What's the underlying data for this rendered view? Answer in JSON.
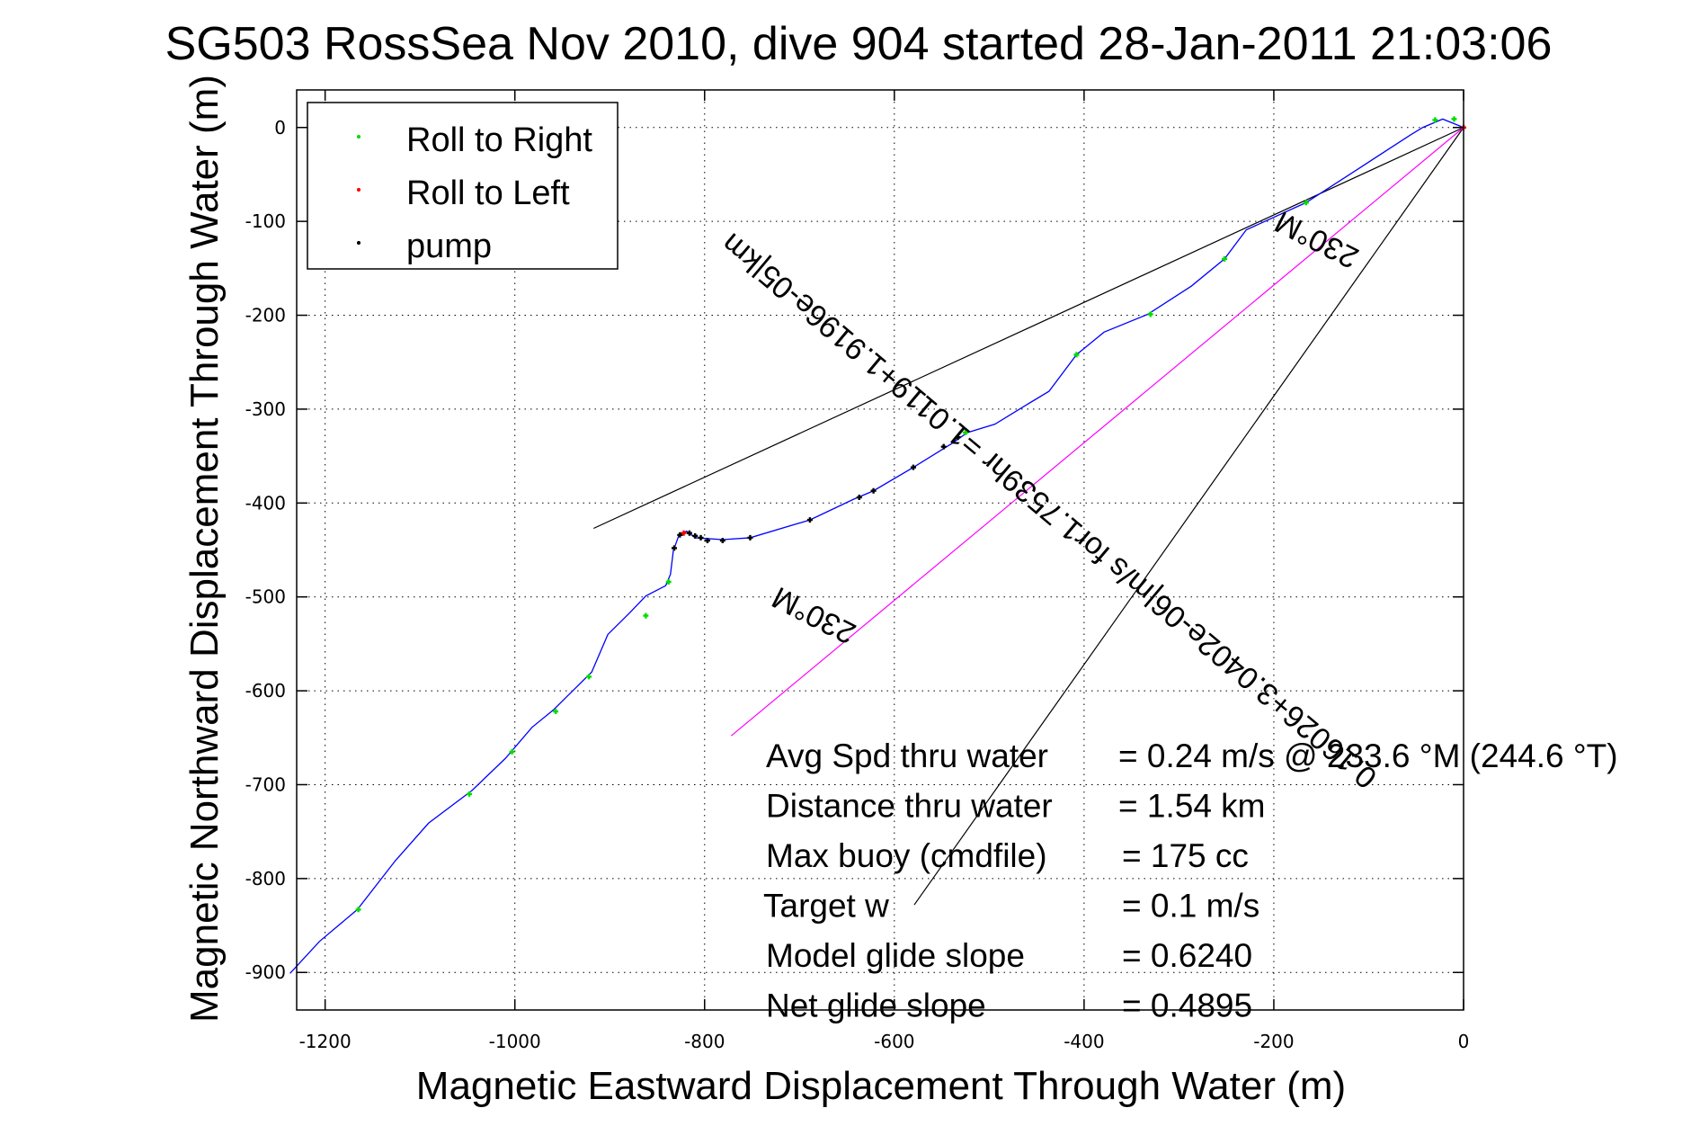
{
  "chart_data": {
    "type": "line",
    "title": "SG503 RossSea Nov 2010, dive 904 started 28-Jan-2011 21:03:06",
    "xlabel": "Magnetic Eastward Displacement Through Water (m)",
    "ylabel": "Magnetic Northward Displacement Through Water (m)",
    "xlim": [
      -1230,
      0
    ],
    "ylim": [
      -940,
      40
    ],
    "grid": true,
    "xticks": [
      -1200,
      -1000,
      -800,
      -600,
      -400,
      -200,
      0
    ],
    "yticks": [
      0,
      -100,
      -200,
      -300,
      -400,
      -500,
      -600,
      -700,
      -800,
      -900
    ],
    "legend": {
      "placement": "top-left",
      "entries": [
        {
          "label": "Roll to Right",
          "color": "#00dd00"
        },
        {
          "label": "Roll to Left",
          "color": "#ff0000"
        },
        {
          "label": "pump",
          "color": "#000000"
        }
      ]
    },
    "series": [
      {
        "name": "track",
        "color": "#0000ff",
        "x": [
          0,
          -22,
          -43,
          -56,
          -114,
          -166,
          -229,
          -252,
          -287,
          -333,
          -379,
          -408,
          -437,
          -460,
          -494,
          -523,
          -540,
          -580,
          -622,
          -643,
          -689,
          -752,
          -781,
          -810,
          -819,
          -827,
          -833,
          -836,
          -841,
          -862,
          -879,
          -902,
          -919,
          -942,
          -959,
          -982,
          -1010,
          -1045,
          -1091,
          -1126,
          -1166,
          -1206,
          -1237
        ],
        "y": [
          0,
          9,
          0,
          -8,
          -46,
          -80,
          -109,
          -140,
          -169,
          -199,
          -218,
          -242,
          -281,
          -295,
          -316,
          -325,
          -337,
          -362,
          -387,
          -396,
          -418,
          -437,
          -439,
          -437,
          -430,
          -434,
          -451,
          -476,
          -488,
          -499,
          -517,
          -540,
          -580,
          -603,
          -620,
          -639,
          -672,
          -706,
          -741,
          -781,
          -833,
          -867,
          -901
        ]
      }
    ],
    "roll_right_points": [
      {
        "x": -10,
        "y": 9
      },
      {
        "x": -30,
        "y": 8
      },
      {
        "x": -166,
        "y": -80
      },
      {
        "x": -252,
        "y": -140
      },
      {
        "x": -330,
        "y": -199
      },
      {
        "x": -408,
        "y": -242
      },
      {
        "x": -525,
        "y": -325
      },
      {
        "x": -838,
        "y": -484
      },
      {
        "x": -862,
        "y": -520
      },
      {
        "x": -922,
        "y": -585
      },
      {
        "x": -957,
        "y": -622
      },
      {
        "x": -1003,
        "y": -665
      },
      {
        "x": -1048,
        "y": -710
      },
      {
        "x": -1165,
        "y": -833
      }
    ],
    "roll_left_points": [
      {
        "x": -822,
        "y": -432
      }
    ],
    "pump_points": [
      {
        "x": -533,
        "y": -330
      },
      {
        "x": -548,
        "y": -340
      },
      {
        "x": -580,
        "y": -362
      },
      {
        "x": -622,
        "y": -387
      },
      {
        "x": -637,
        "y": -394
      },
      {
        "x": -689,
        "y": -418
      },
      {
        "x": -752,
        "y": -437
      },
      {
        "x": -781,
        "y": -440
      },
      {
        "x": -797,
        "y": -440
      },
      {
        "x": -804,
        "y": -437
      },
      {
        "x": -810,
        "y": -435
      },
      {
        "x": -816,
        "y": -432
      },
      {
        "x": -826,
        "y": -434
      },
      {
        "x": -832,
        "y": -448
      }
    ],
    "reference_lines": [
      {
        "name": "upper-heading-line",
        "color": "#000000",
        "from": [
          0,
          0
        ],
        "to": [
          -917,
          -427
        ]
      },
      {
        "name": "lower-heading-line",
        "color": "#000000",
        "from": [
          0,
          0
        ],
        "to": [
          -579,
          -828
        ]
      },
      {
        "name": "current-line",
        "color": "#ff00ff",
        "from": [
          0,
          0
        ],
        "to": [
          -772,
          -648
        ]
      }
    ],
    "rotated_labels": [
      {
        "text": "230°M",
        "x": -150,
        "y": -110,
        "angle": 207
      },
      {
        "text": "0.16026+3.0402e-06|m/s for1.7539hr =1.0119+1.9196e-05|km",
        "x": -430,
        "y": -400,
        "angle": 220
      },
      {
        "text": "230°M",
        "x": -680,
        "y": -510,
        "angle": 207
      }
    ],
    "annotations": [
      {
        "label": "Avg Spd thru water",
        "value": "=  0.24 m/s @ 233.6 °M (244.6 °T)"
      },
      {
        "label": "Distance thru water",
        "value": "=  1.54 km"
      },
      {
        "label": "Max buoy (cmdfile)",
        "value": "= 175 cc"
      },
      {
        "label": "Target w",
        "value": "= 0.1 m/s"
      },
      {
        "label": "Model glide slope",
        "value": "= 0.6240"
      },
      {
        "label": "Net glide slope",
        "value": "= 0.4895"
      }
    ]
  }
}
